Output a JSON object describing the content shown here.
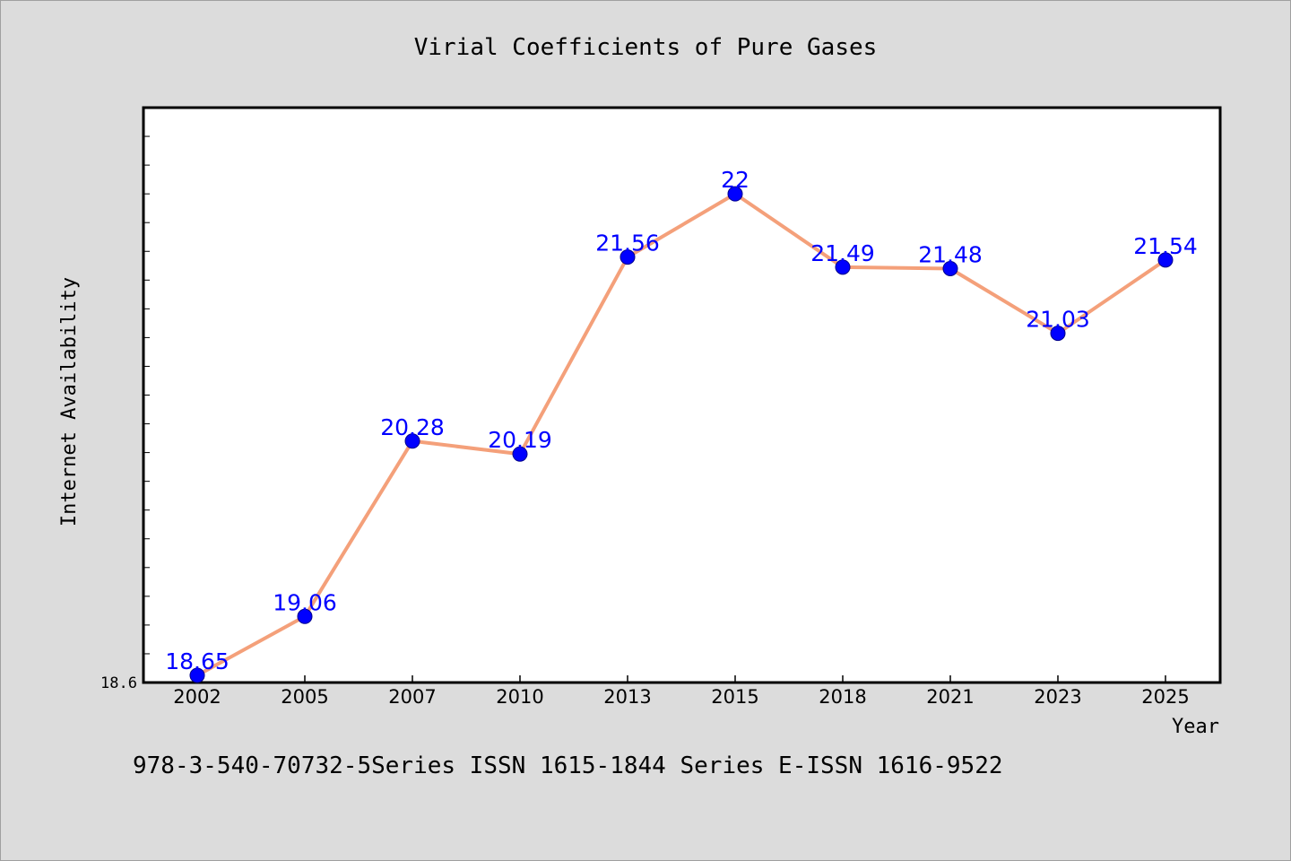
{
  "chart_data": {
    "type": "line",
    "title": "Virial Coefficients of Pure Gases",
    "xlabel": "Year",
    "ylabel": "Internet Availability",
    "categories": [
      "2002",
      "2005",
      "2007",
      "2010",
      "2013",
      "2015",
      "2018",
      "2021",
      "2023",
      "2025"
    ],
    "series": [
      {
        "values": [
          18.65,
          19.06,
          20.28,
          20.19,
          21.56,
          22,
          21.49,
          21.48,
          21.03,
          21.54
        ],
        "data_labels": [
          "18.65",
          "19.06",
          "20.28",
          "20.19",
          "21.56",
          "22",
          "21.49",
          "21.48",
          "21.03",
          "21.54"
        ],
        "line_color": "#f4a07a",
        "marker_color": "#0000ff"
      }
    ],
    "ylim": [
      18.6,
      22.6
    ],
    "y_tick_labels": [
      "18.6"
    ],
    "grid": false,
    "legend": "none"
  },
  "footer_text": "978-3-540-70732-5Series ISSN 1615-1844 Series E-ISSN 1616-9522",
  "colors": {
    "background": "#dcdcdc",
    "plot_background": "#ffffff",
    "line": "#f4a07a",
    "marker": "#0000ff",
    "data_label": "#0000ff"
  }
}
